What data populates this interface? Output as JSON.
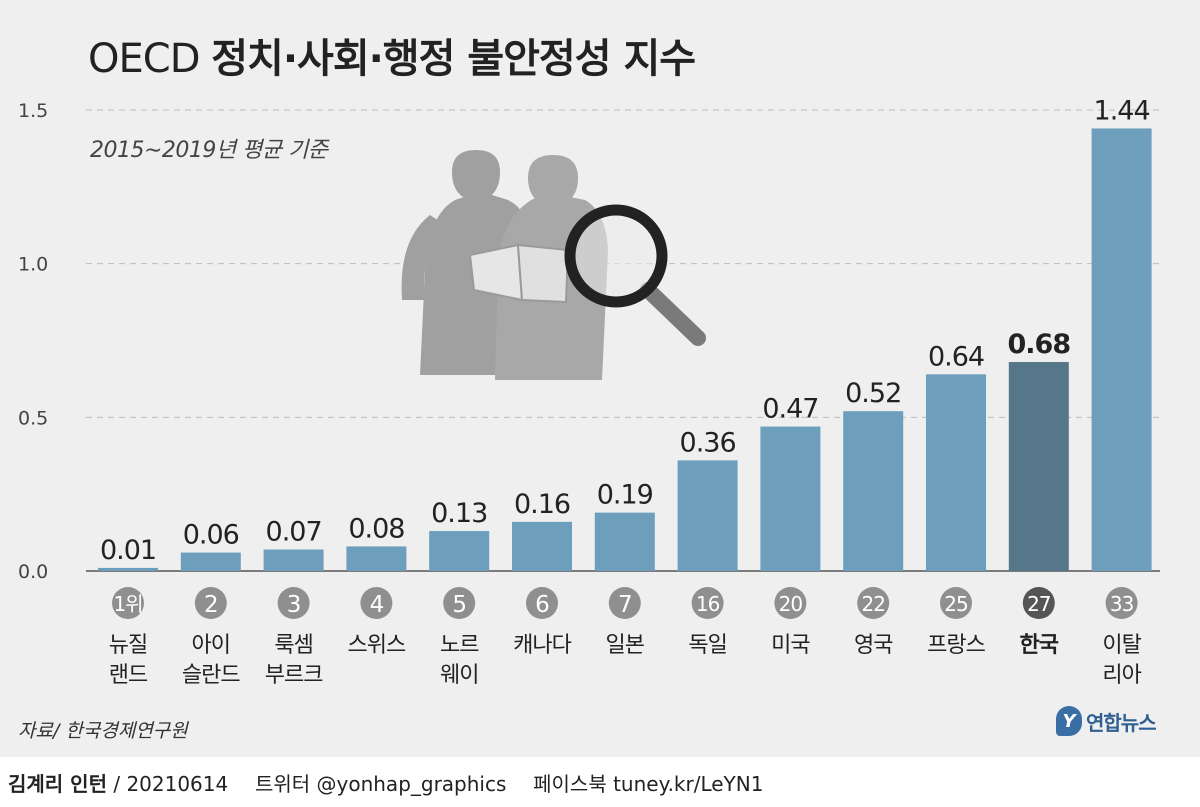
{
  "title_prefix": "OECD",
  "title_main": "정치·사회·행정 불안정성 지수",
  "subtitle": "2015∼2019년 평균 기준",
  "source": "자료/ 한국경제연구원",
  "logo_mark": "Y",
  "logo": "연합뉴스",
  "footer": {
    "author": "김계리 인턴",
    "separator": "/",
    "date": "20210614",
    "twitter": "트위터 @yonhap_graphics",
    "facebook": "페이스북 tuney.kr/LeYN1"
  },
  "colors": {
    "bar": "#6d9fbd",
    "highlight_bar": "#557789",
    "badge": "#8f8f8f",
    "highlight_badge": "#555555",
    "grid": "#bdbdbd",
    "text": "#222222",
    "background": "#efefef"
  },
  "decoration": {
    "illustration": "two-people-reading-document-with-magnifier-icon"
  },
  "chart_data": {
    "type": "bar",
    "title": "OECD 정치·사회·행정 불안정성 지수",
    "subtitle": "2015∼2019년 평균 기준",
    "ylim": [
      0,
      1.5
    ],
    "y_ticks": [
      "0.0",
      "0.5",
      "1.0",
      "1.5"
    ],
    "grid": true,
    "legend": "none",
    "highlight_index": 11,
    "categories": [
      {
        "rank": "1위",
        "lines": [
          "뉴질",
          "랜드"
        ]
      },
      {
        "rank": "2",
        "lines": [
          "아이",
          "슬란드"
        ]
      },
      {
        "rank": "3",
        "lines": [
          "룩셈",
          "부르크"
        ]
      },
      {
        "rank": "4",
        "lines": [
          "스위스"
        ]
      },
      {
        "rank": "5",
        "lines": [
          "노르",
          "웨이"
        ]
      },
      {
        "rank": "6",
        "lines": [
          "캐나다"
        ]
      },
      {
        "rank": "7",
        "lines": [
          "일본"
        ]
      },
      {
        "rank": "16",
        "lines": [
          "독일"
        ]
      },
      {
        "rank": "20",
        "lines": [
          "미국"
        ]
      },
      {
        "rank": "22",
        "lines": [
          "영국"
        ]
      },
      {
        "rank": "25",
        "lines": [
          "프랑스"
        ]
      },
      {
        "rank": "27",
        "lines": [
          "한국"
        ]
      },
      {
        "rank": "33",
        "lines": [
          "이탈",
          "리아"
        ]
      }
    ],
    "values": [
      0.01,
      0.06,
      0.07,
      0.08,
      0.13,
      0.16,
      0.19,
      0.36,
      0.47,
      0.52,
      0.64,
      0.68,
      1.44
    ],
    "value_labels": [
      "0.01",
      "0.06",
      "0.07",
      "0.08",
      "0.13",
      "0.16",
      "0.19",
      "0.36",
      "0.47",
      "0.52",
      "0.64",
      "0.68",
      "1.44"
    ]
  }
}
